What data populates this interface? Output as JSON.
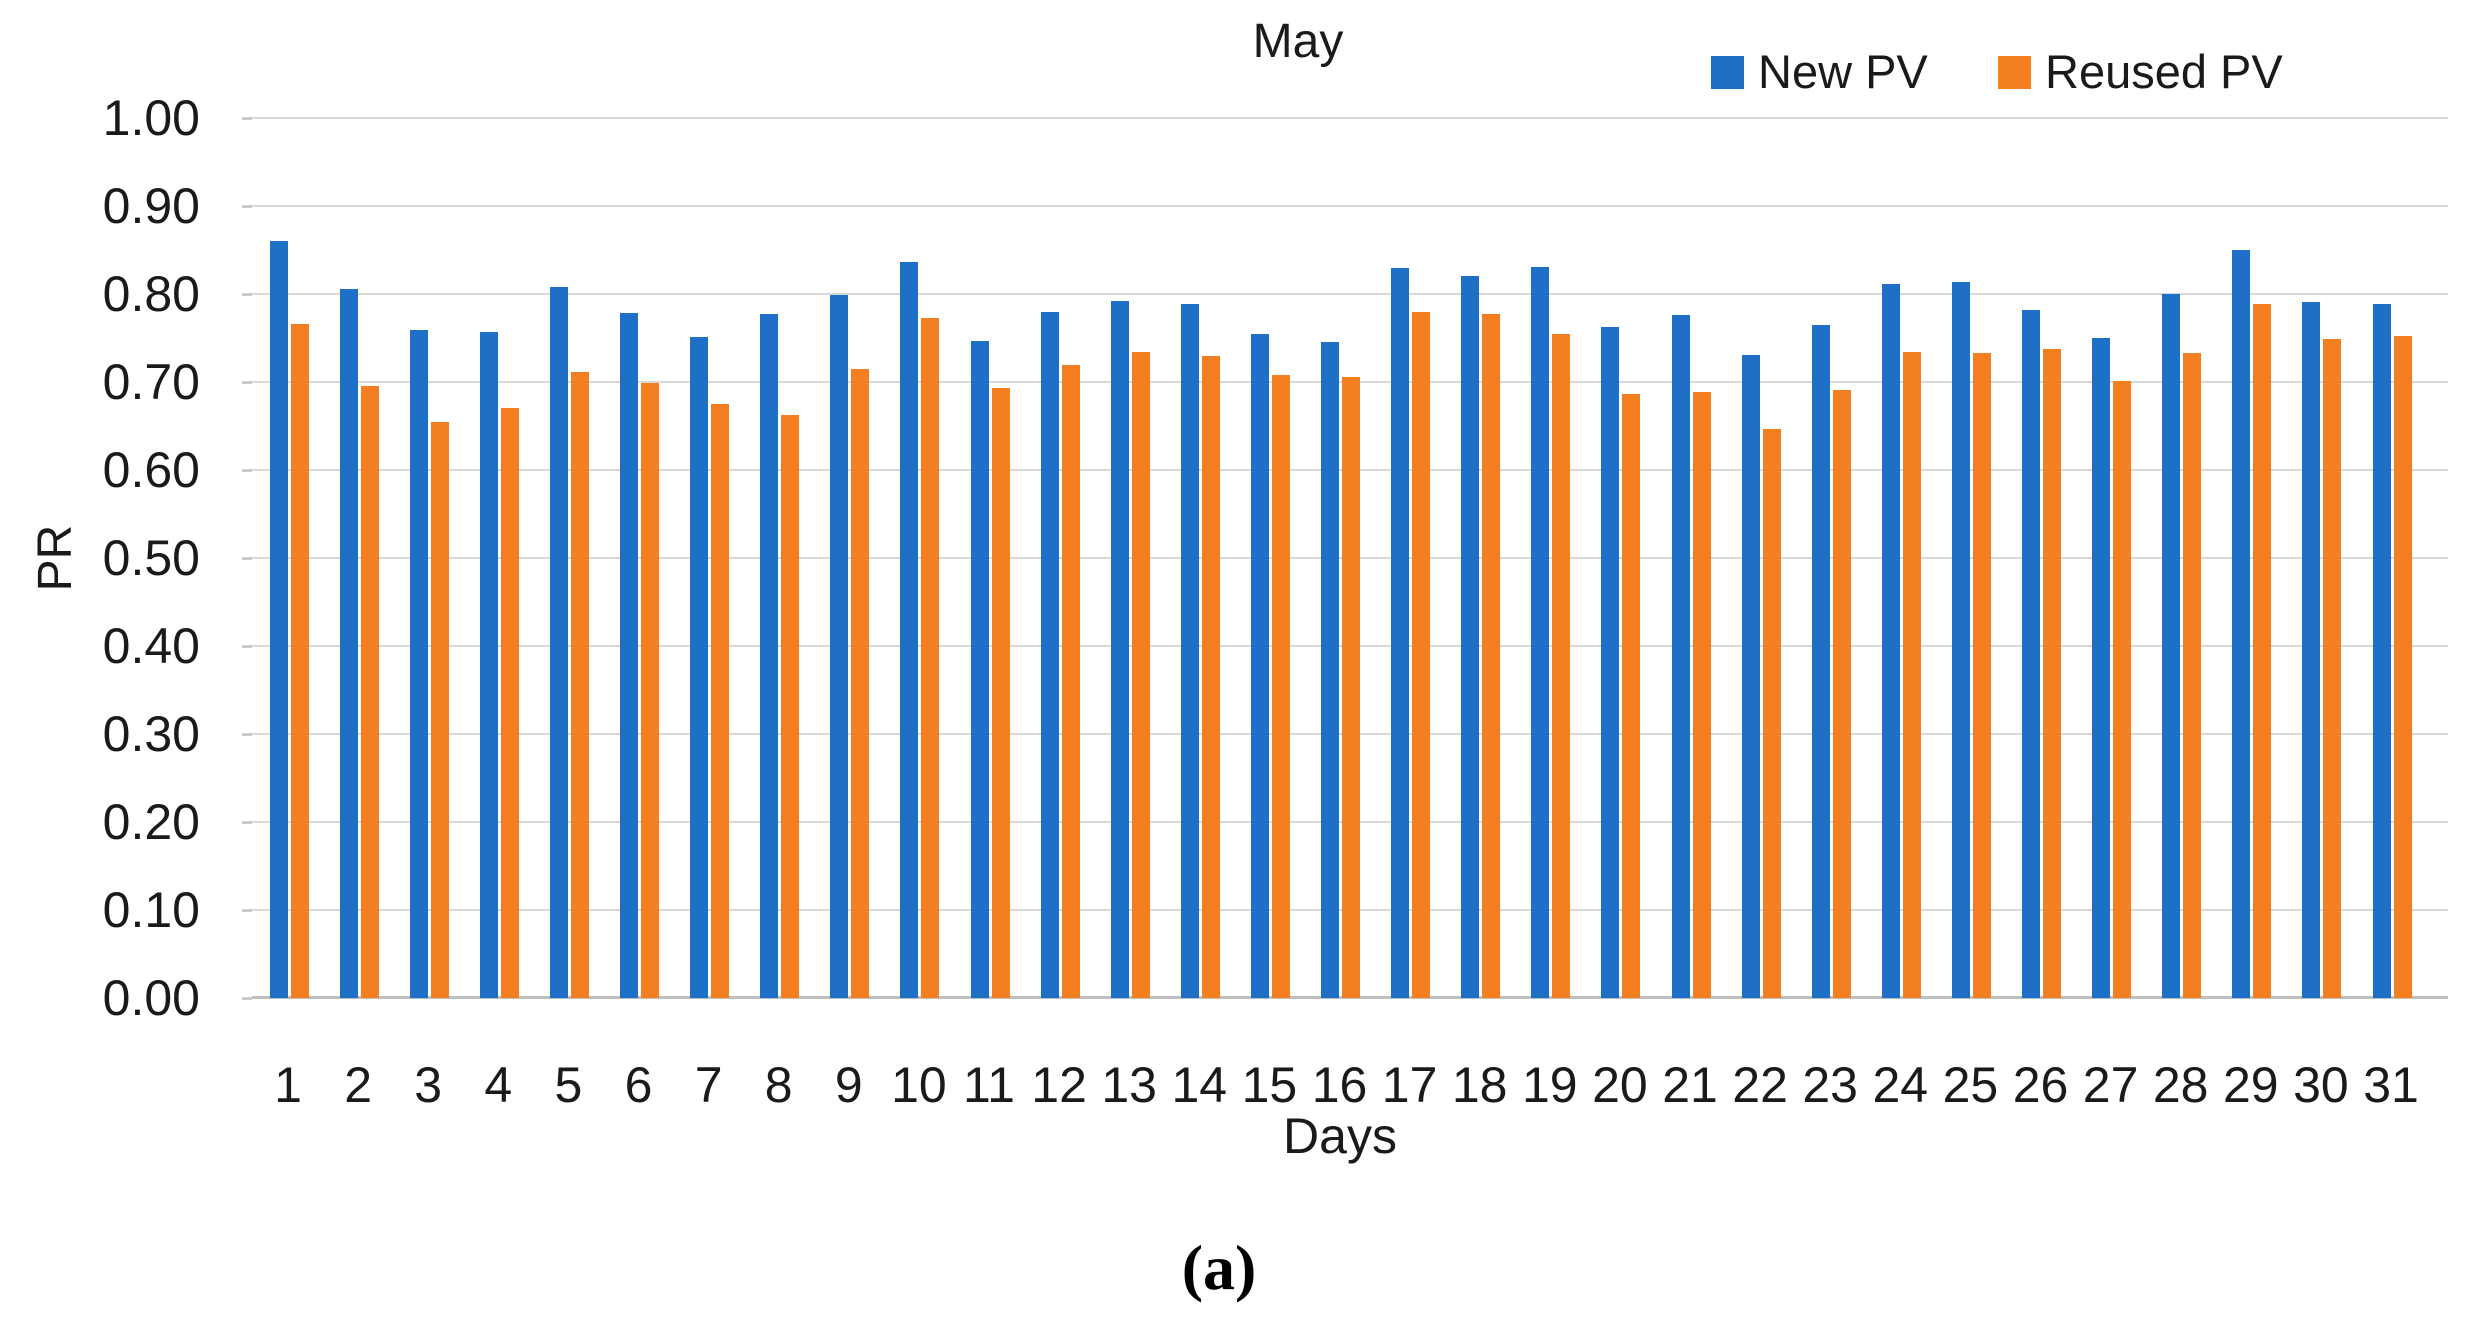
{
  "figure": {
    "caption": "(a)"
  },
  "chart_data": {
    "type": "bar",
    "title": "May",
    "xlabel": "Days",
    "ylabel": "PR",
    "categories": [
      1,
      2,
      3,
      4,
      5,
      6,
      7,
      8,
      9,
      10,
      11,
      12,
      13,
      14,
      15,
      16,
      17,
      18,
      19,
      20,
      21,
      22,
      23,
      24,
      25,
      26,
      27,
      28,
      29,
      30,
      31
    ],
    "series": [
      {
        "name": "New PV",
        "color": "#1E70C6",
        "values": [
          0.86,
          0.806,
          0.759,
          0.757,
          0.808,
          0.778,
          0.751,
          0.777,
          0.799,
          0.836,
          0.747,
          0.779,
          0.792,
          0.789,
          0.755,
          0.745,
          0.829,
          0.82,
          0.831,
          0.763,
          0.776,
          0.731,
          0.765,
          0.811,
          0.814,
          0.782,
          0.75,
          0.8,
          0.85,
          0.791,
          0.789
        ]
      },
      {
        "name": "Reused PV",
        "color": "#F47F20",
        "values": [
          0.766,
          0.696,
          0.654,
          0.671,
          0.711,
          0.699,
          0.675,
          0.663,
          0.715,
          0.773,
          0.693,
          0.719,
          0.734,
          0.73,
          0.708,
          0.706,
          0.78,
          0.777,
          0.755,
          0.686,
          0.689,
          0.647,
          0.691,
          0.734,
          0.733,
          0.738,
          0.701,
          0.733,
          0.789,
          0.749,
          0.752
        ]
      }
    ],
    "ylim": [
      0.0,
      1.0
    ],
    "ytick_step": 0.1,
    "ytick_labels": [
      "0.00",
      "0.10",
      "0.20",
      "0.30",
      "0.40",
      "0.50",
      "0.60",
      "0.70",
      "0.80",
      "0.90",
      "1.00"
    ],
    "grid": true,
    "legend_position": "top-right",
    "gridline_color": "#D9D9D9",
    "axisline_color": "#BFBFBF"
  }
}
